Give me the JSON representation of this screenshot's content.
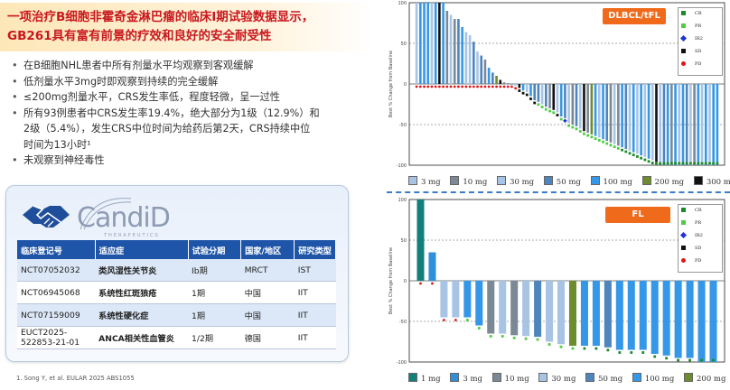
{
  "banner": {
    "line1": "一项治疗B细胞非霍奇金淋巴瘤的临床I期试验数据显示，",
    "line2": "GB261具有富有前景的疗效和良好的安全耐受性"
  },
  "bullets": [
    "在B细胞NHL患者中所有剂量水平均观察到客观缓解",
    "低剂量水平3mg时即观察到持续的完全缓解",
    "≤200mg剂量水平，CRS发生率低，程度轻微，呈一过性",
    "所有93例患者中CRS发生率19.4%，绝大部分为1级（12.9%）和",
    "2级（5.4%），发生CRS中位时间为给药后第2天，CRS持续中位",
    "时间为13小时¹",
    "未观察到神经毒性"
  ],
  "logo": {
    "name": "CandiD",
    "tagline": "THERAPEUTICS"
  },
  "table": {
    "headers": [
      "临床登记号",
      "适应症",
      "试验分期",
      "国家/地区",
      "研究类型"
    ],
    "rows": [
      [
        "NCT07052032",
        "类风湿性关节炎",
        "Ib期",
        "MRCT",
        "IST"
      ],
      [
        "NCT06945068",
        "系统性红斑狼疮",
        "1期",
        "中国",
        "IIT"
      ],
      [
        "NCT07159009",
        "系统性硬化症",
        "1期",
        "中国",
        "IIT"
      ],
      [
        "EUCT2025-\n522853-21-01",
        "ANCA相关性血管炎",
        "1/2期",
        "德国",
        "IIT"
      ]
    ]
  },
  "footnote": "1. Song Y, et al. EULAR 2025 ABS1055",
  "charts": {
    "dlbcl": {
      "tag": "DLBCL/tFL",
      "ylabel": "Best % Change from Baseline",
      "yticks": [
        "100",
        "50",
        "0",
        "-50",
        "-100"
      ],
      "legend": [
        "CR",
        "PR",
        "IR2",
        "SD",
        "PD"
      ],
      "doses": [
        "3 mg",
        "10 mg",
        "30 mg",
        "50 mg",
        "100 mg",
        "200 mg",
        "300 mg"
      ]
    },
    "fl": {
      "tag": "FL",
      "ylabel": "Best % Change from Baseline",
      "yticks": [
        "100",
        "50",
        "0",
        "-50",
        "-100"
      ],
      "legend": [
        "CR",
        "PR",
        "IR2",
        "SD",
        "PD"
      ],
      "doses": [
        "1 mg",
        "3 mg",
        "10 mg",
        "30 mg",
        "50 mg",
        "100 mg",
        "200 mg"
      ]
    }
  },
  "colors": {
    "1 mg": "#12807a",
    "3 mg": "#2f8fd8",
    "10 mg": "#7b8896",
    "30 mg": "#a8c4e4",
    "50 mg": "#4e85bd",
    "100 mg": "#3597e8",
    "200 mg": "#6d8c2e",
    "300 mg": "#111111",
    "CR": "#1d8a2a",
    "PR": "#4fcb44",
    "IR2": "#1f33d8",
    "SD": "#111111",
    "PD": "#e01515",
    "banner_text": "#c8181e",
    "table_header": "#1e55a8",
    "tag": "#f06a1c"
  },
  "chart_data": [
    {
      "type": "bar",
      "title": "DLBCL/tFL",
      "ylabel": "Best % Change from Baseline",
      "ylim": [
        -100,
        100
      ],
      "series_dose": [
        "30 mg",
        "100 mg",
        "100 mg",
        "100 mg",
        "30 mg",
        "100 mg",
        "300 mg",
        "100 mg",
        "10 mg",
        "30 mg",
        "10 mg",
        "50 mg",
        "100 mg",
        "30 mg",
        "30 mg",
        "50 mg",
        "30 mg",
        "50 mg",
        "10 mg",
        "100 mg",
        "50 mg",
        "200 mg",
        "300 mg",
        "10 mg",
        "10 mg",
        "100 mg",
        "30 mg",
        "300 mg",
        "100 mg",
        "30 mg",
        "100 mg",
        "50 mg",
        "50 mg",
        "30 mg",
        "50 mg",
        "10 mg",
        "300 mg",
        "30 mg",
        "100 mg",
        "50 mg",
        "30 mg",
        "10 mg",
        "50 mg",
        "30 mg",
        "300 mg",
        "10 mg",
        "200 mg",
        "100 mg",
        "30 mg",
        "100 mg",
        "50 mg",
        "10 mg",
        "30 mg",
        "10 mg",
        "100 mg",
        "50 mg",
        "30 mg",
        "100 mg",
        "30 mg",
        "100 mg",
        "30 mg",
        "100 mg",
        "30 mg",
        "300 mg",
        "30 mg",
        "50 mg",
        "100 mg",
        "10 mg",
        "100 mg",
        "30 mg",
        "100 mg",
        "50 mg",
        "30 mg",
        "10 mg",
        "100 mg",
        "30 mg",
        "100 mg",
        "30 mg",
        "100 mg",
        "100 mg"
      ],
      "values": [
        100,
        100,
        100,
        100,
        100,
        100,
        100,
        100,
        90,
        85,
        80,
        80,
        70,
        64,
        60,
        52,
        40,
        35,
        30,
        20,
        14,
        10,
        5,
        2,
        1,
        0,
        -2,
        -5,
        -8,
        -10,
        -15,
        -20,
        -22,
        -25,
        -28,
        -30,
        -32,
        -35,
        -40,
        -42,
        -48,
        -50,
        -52,
        -55,
        -58,
        -60,
        -62,
        -64,
        -66,
        -68,
        -70,
        -72,
        -74,
        -76,
        -78,
        -80,
        -82,
        -84,
        -86,
        -88,
        -90,
        -92,
        -94,
        -96,
        -98,
        -100,
        -100,
        -100,
        -100,
        -100,
        -100,
        -100,
        -100,
        -100,
        -100,
        -100,
        -100,
        -100,
        -100,
        -100
      ],
      "response": [
        "PD",
        "PD",
        "PD",
        "PD",
        "PD",
        "PD",
        "PD",
        "PD",
        "PD",
        "PD",
        "PD",
        "PD",
        "PD",
        "PD",
        "PD",
        "PD",
        "PD",
        "PD",
        "PD",
        "PD",
        "PD",
        "PD",
        "PD",
        "PD",
        "PD",
        "PD",
        "PD",
        "SD",
        "SD",
        "SD",
        "SD",
        "SD",
        "PR",
        "PR",
        "PR",
        "PR",
        "PR",
        "SD",
        "PR",
        "IR2",
        "PR",
        "PR",
        "PR",
        "PR",
        "PR",
        "PR",
        "PR",
        "PR",
        "PR",
        "PR",
        "PR",
        "PR",
        "PR",
        "PR",
        "CR",
        "CR",
        "CR",
        "CR",
        "CR",
        "CR",
        "CR",
        "CR",
        "CR",
        "CR",
        "CR",
        "CR",
        "CR",
        "CR",
        "CR",
        "CR",
        "CR",
        "CR",
        "CR",
        "CR",
        "CR",
        "CR",
        "CR",
        "CR",
        "CR",
        "CR"
      ]
    },
    {
      "type": "bar",
      "title": "FL",
      "ylabel": "Best % Change from Baseline",
      "ylim": [
        -100,
        100
      ],
      "series_dose": [
        "1 mg",
        "3 mg",
        "30 mg",
        "30 mg",
        "100 mg",
        "100 mg",
        "10 mg",
        "30 mg",
        "10 mg",
        "30 mg",
        "50 mg",
        "30 mg",
        "30 mg",
        "200 mg",
        "100 mg",
        "100 mg",
        "50 mg",
        "100 mg",
        "100 mg",
        "100 mg",
        "100 mg",
        "100 mg",
        "100 mg",
        "100 mg",
        "100 mg",
        "100 mg"
      ],
      "values": [
        100,
        35,
        -45,
        -45,
        -45,
        -55,
        -65,
        -65,
        -67,
        -68,
        -69,
        -75,
        -78,
        -80,
        -80,
        -80,
        -82,
        -85,
        -85,
        -85,
        -90,
        -92,
        -95,
        -95,
        -100,
        -100
      ],
      "response": [
        "PD",
        "PD",
        "PD",
        "PD",
        "PR",
        "PR",
        "PR",
        "PR",
        "PR",
        "PR",
        "PR",
        "PR",
        "PR",
        "PR",
        "CR",
        "CR",
        "CR",
        "CR",
        "CR",
        "CR",
        "CR",
        "CR",
        "CR",
        "CR",
        "CR",
        "CR"
      ]
    }
  ]
}
